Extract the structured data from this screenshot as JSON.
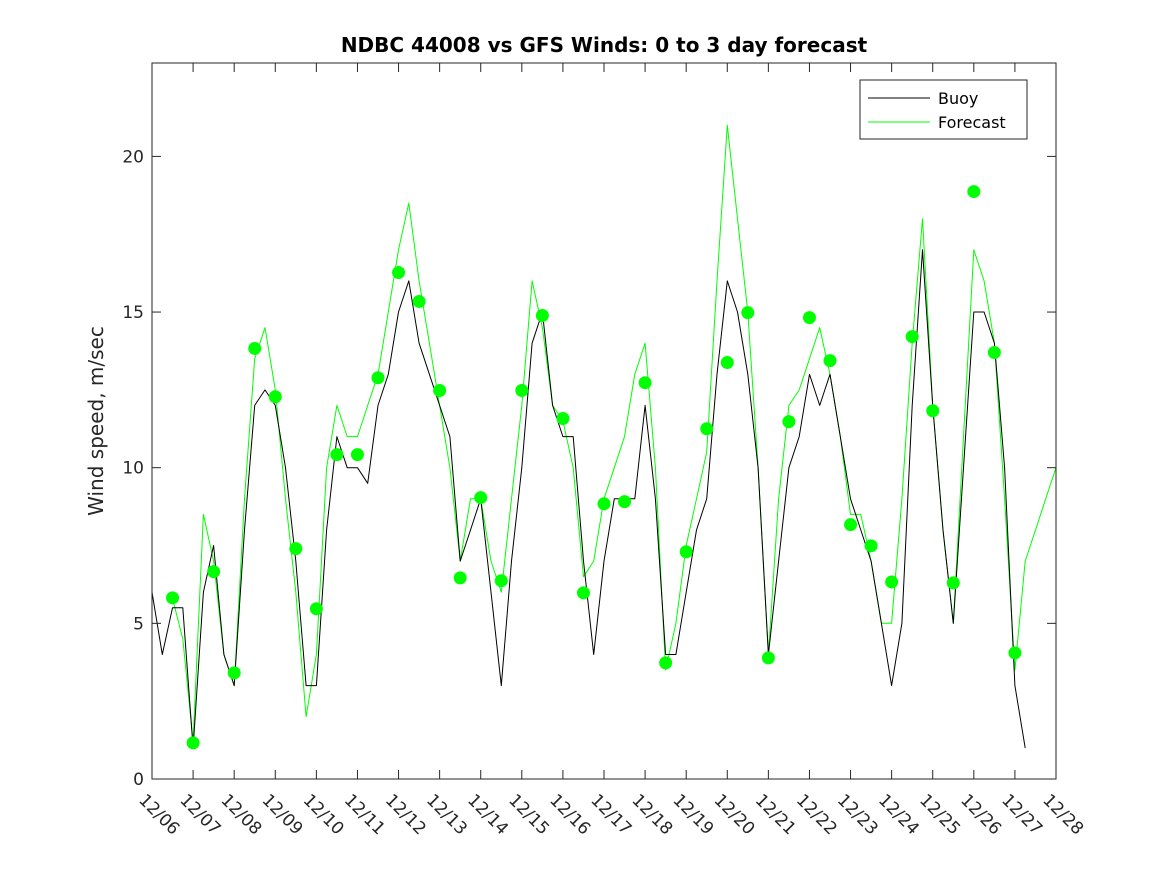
{
  "chart_data": {
    "type": "line",
    "title": "NDBC 44008 vs GFS Winds: 0 to 3 day forecast",
    "xlabel": "",
    "ylabel": "Wind speed, m/sec",
    "xlim": [
      0,
      22
    ],
    "ylim": [
      0,
      23
    ],
    "grid": false,
    "legend_placement": "top-right",
    "x_tick_labels": [
      "12/06",
      "12/07",
      "12/08",
      "12/09",
      "12/10",
      "12/11",
      "12/12",
      "12/13",
      "12/14",
      "12/15",
      "12/16",
      "12/17",
      "12/18",
      "12/19",
      "12/20",
      "12/21",
      "12/22",
      "12/23",
      "12/24",
      "12/25",
      "12/26",
      "12/27",
      "12/28"
    ],
    "y_ticks": [
      0,
      5,
      10,
      15,
      20
    ],
    "x_units": "days since 12/06",
    "series": [
      {
        "name": "Buoy",
        "color": "#000000",
        "x_start": 0,
        "x_step": 0.25,
        "values": [
          6,
          4,
          5.5,
          5.5,
          1,
          6,
          7.5,
          4,
          3,
          8,
          12,
          12.5,
          12,
          10,
          7,
          3,
          3,
          8,
          11,
          10,
          10,
          9.5,
          12,
          13,
          15,
          16,
          14,
          13,
          12,
          11,
          7,
          8,
          9,
          6,
          3,
          7,
          10,
          14,
          15,
          12,
          11,
          11,
          7,
          4,
          7,
          9,
          9,
          9,
          12,
          9,
          4,
          4,
          6,
          8,
          9,
          13,
          16,
          15,
          13,
          10,
          4,
          7,
          10,
          11,
          13,
          12,
          13,
          11,
          9,
          8,
          7,
          5,
          3,
          5,
          12,
          17,
          12,
          8,
          5,
          10,
          15,
          15,
          14,
          10,
          3,
          1
        ]
      },
      {
        "name": "Forecast",
        "color": "#00ff00",
        "x_start": 0.5,
        "x_step": 0.25,
        "values": [
          5.8,
          4.5,
          1.2,
          8.5,
          7,
          4,
          3,
          9,
          13.5,
          14.5,
          12.5,
          9,
          6,
          2,
          4,
          10,
          12,
          11,
          11,
          12,
          13,
          15,
          17,
          18.5,
          16,
          14,
          12,
          10,
          7,
          9,
          9,
          7,
          6,
          9,
          12,
          16,
          14.5,
          12,
          11.5,
          10,
          6.5,
          7,
          9,
          10,
          11,
          13,
          14,
          10,
          3.5,
          5,
          7.5,
          9,
          10.5,
          16,
          21,
          18,
          15,
          10,
          4,
          9,
          12,
          12.5,
          13.5,
          14.5,
          13,
          11,
          8.5,
          8.5,
          7,
          5,
          5,
          9,
          14,
          18,
          12,
          8,
          5,
          11,
          17,
          16,
          14,
          9,
          3.5,
          7,
          8,
          9,
          10
        ]
      }
    ],
    "forecast_start_points": {
      "color": "#00ff00",
      "x_start": 0.5,
      "x_step": 0.5,
      "values": [
        5.82,
        1.16,
        6.66,
        3.41,
        13.83,
        12.28,
        7.4,
        5.47,
        10.42,
        10.42,
        12.89,
        16.27,
        15.34,
        12.48,
        6.46,
        9.04,
        6.37,
        12.48,
        14.89,
        11.58,
        5.98,
        8.84,
        8.91,
        12.73,
        3.73,
        7.3,
        11.25,
        13.38,
        14.98,
        3.89,
        11.48,
        14.82,
        13.44,
        8.17,
        7.49,
        6.33,
        14.21,
        11.83,
        6.3,
        18.87,
        13.7,
        4.05
      ]
    },
    "legend": [
      "Buoy",
      "Forecast"
    ]
  }
}
